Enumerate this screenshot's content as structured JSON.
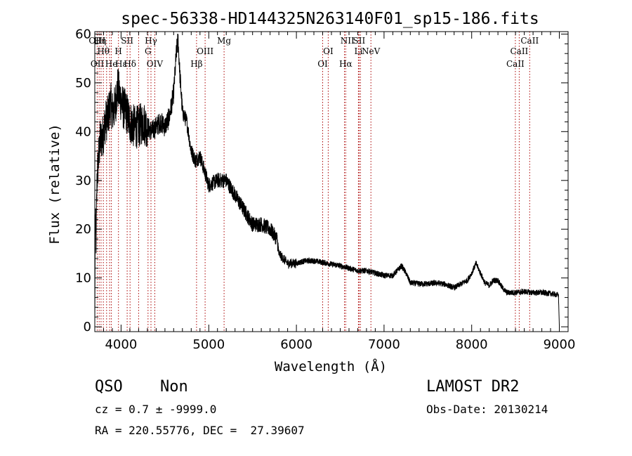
{
  "figure": {
    "title": "spec-56338-HD144325N263140F01_sp15-186.fits",
    "object_class": "QSO",
    "subclass": "Non",
    "survey": "LAMOST DR2",
    "redshift_text": "cz = 0.7 ± -9999.0",
    "obs_date_text": "Obs-Date: 20130214",
    "coords_text": "RA = 220.55776, DEC =  27.39607"
  },
  "chart_data": {
    "type": "line",
    "xlabel": "Wavelength (Å)",
    "ylabel": "Flux (relative)",
    "xlim": [
      3700,
      9100
    ],
    "ylim": [
      -1,
      60.5
    ],
    "xticks": [
      4000,
      5000,
      6000,
      7000,
      8000,
      9000
    ],
    "yticks": [
      0,
      10,
      20,
      30,
      40,
      50,
      60
    ],
    "grid": false,
    "line_color": "#000000",
    "marker_color": "#aa0000",
    "spectrum_knots": [
      [
        3700,
        0
      ],
      [
        3705,
        22
      ],
      [
        3715,
        18
      ],
      [
        3725,
        30
      ],
      [
        3740,
        34
      ],
      [
        3760,
        38
      ],
      [
        3790,
        39
      ],
      [
        3820,
        42
      ],
      [
        3850,
        43
      ],
      [
        3880,
        46
      ],
      [
        3900,
        44
      ],
      [
        3930,
        45
      ],
      [
        3960,
        49
      ],
      [
        3990,
        47
      ],
      [
        4020,
        45
      ],
      [
        4060,
        44
      ],
      [
        4100,
        42
      ],
      [
        4150,
        41
      ],
      [
        4200,
        41
      ],
      [
        4250,
        42
      ],
      [
        4300,
        41
      ],
      [
        4350,
        40
      ],
      [
        4400,
        41
      ],
      [
        4450,
        42
      ],
      [
        4500,
        41
      ],
      [
        4550,
        43
      ],
      [
        4600,
        48
      ],
      [
        4630,
        56
      ],
      [
        4650,
        59
      ],
      [
        4670,
        52
      ],
      [
        4700,
        44
      ],
      [
        4750,
        42
      ],
      [
        4800,
        36
      ],
      [
        4850,
        34
      ],
      [
        4900,
        35
      ],
      [
        4950,
        32
      ],
      [
        5000,
        29
      ],
      [
        5100,
        30
      ],
      [
        5200,
        30
      ],
      [
        5300,
        27
      ],
      [
        5400,
        24
      ],
      [
        5500,
        21
      ],
      [
        5600,
        21
      ],
      [
        5700,
        20
      ],
      [
        5780,
        18
      ],
      [
        5800,
        15
      ],
      [
        5850,
        14
      ],
      [
        5900,
        13
      ],
      [
        6000,
        13
      ],
      [
        6100,
        13.5
      ],
      [
        6200,
        13.5
      ],
      [
        6300,
        13.2
      ],
      [
        6400,
        12.8
      ],
      [
        6500,
        12.5
      ],
      [
        6600,
        12
      ],
      [
        6700,
        11.5
      ],
      [
        6800,
        11.5
      ],
      [
        6900,
        11
      ],
      [
        7000,
        10.5
      ],
      [
        7100,
        10.5
      ],
      [
        7150,
        11.5
      ],
      [
        7200,
        12.5
      ],
      [
        7250,
        11
      ],
      [
        7300,
        9
      ],
      [
        7400,
        8.8
      ],
      [
        7500,
        8.8
      ],
      [
        7600,
        9
      ],
      [
        7700,
        8.7
      ],
      [
        7800,
        8
      ],
      [
        7900,
        9
      ],
      [
        7950,
        9.5
      ],
      [
        8000,
        11
      ],
      [
        8050,
        13
      ],
      [
        8100,
        11
      ],
      [
        8150,
        9
      ],
      [
        8200,
        8.5
      ],
      [
        8250,
        9.5
      ],
      [
        8300,
        9.5
      ],
      [
        8350,
        8
      ],
      [
        8400,
        7
      ],
      [
        8500,
        7
      ],
      [
        8600,
        7.2
      ],
      [
        8700,
        7
      ],
      [
        8800,
        7
      ],
      [
        8900,
        6.8
      ],
      [
        8990,
        6.5
      ],
      [
        9000,
        0
      ]
    ],
    "annotations": [
      {
        "label": "OIII",
        "x": 3727,
        "row": 0
      },
      {
        "label": "Hη",
        "x": 3760,
        "row": 0
      },
      {
        "label": "Hθ",
        "x": 3798,
        "row": 1
      },
      {
        "label": "OII",
        "x": 3729,
        "row": 2
      },
      {
        "label": "He",
        "x": 3889,
        "row": 2
      },
      {
        "label": "SII",
        "x": 4069,
        "row": 0
      },
      {
        "label": "H",
        "x": 3969,
        "row": 1
      },
      {
        "label": "Hδ",
        "x": 4102,
        "row": 2
      },
      {
        "label": "Hε",
        "x": 4000,
        "row": 2
      },
      {
        "label": "Hγ",
        "x": 4341,
        "row": 0
      },
      {
        "label": "G",
        "x": 4307,
        "row": 1
      },
      {
        "label": "OIV",
        "x": 4384,
        "row": 2
      },
      {
        "label": "Mg",
        "x": 5175,
        "row": 0
      },
      {
        "label": "OIII",
        "x": 4959,
        "row": 1
      },
      {
        "label": "Hβ",
        "x": 4861,
        "row": 2
      },
      {
        "label": "NII",
        "x": 6583,
        "row": 0
      },
      {
        "label": "SII",
        "x": 6716,
        "row": 0
      },
      {
        "label": "OI",
        "x": 6363,
        "row": 1
      },
      {
        "label": "Li",
        "x": 6708,
        "row": 1
      },
      {
        "label": "NeV",
        "x": 6850,
        "row": 1
      },
      {
        "label": "OI",
        "x": 6300,
        "row": 2
      },
      {
        "label": "Hα",
        "x": 6563,
        "row": 2
      },
      {
        "label": "CaII",
        "x": 8662,
        "row": 0
      },
      {
        "label": "CaII",
        "x": 8542,
        "row": 1
      },
      {
        "label": "CaII",
        "x": 8498,
        "row": 2
      }
    ],
    "marker_lines": [
      3727,
      3750,
      3771,
      3798,
      3835,
      3869,
      3889,
      3970,
      4069,
      4102,
      4200,
      4307,
      4341,
      4384,
      4861,
      4959,
      5175,
      6300,
      6363,
      6548,
      6563,
      6708,
      6716,
      6731,
      6850,
      8498,
      8542,
      8662
    ]
  }
}
